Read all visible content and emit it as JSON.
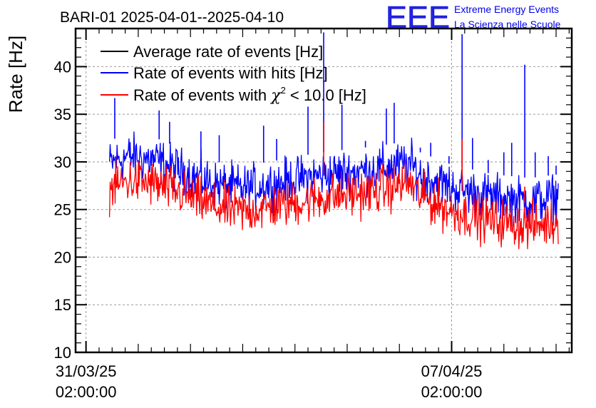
{
  "chart_data": {
    "type": "line",
    "title": "BARI-01 2025-04-01--2025-04-10",
    "ylabel": "Rate [Hz]",
    "xlabel": "",
    "ylim": [
      10,
      44
    ],
    "yticks": [
      10,
      15,
      20,
      25,
      30,
      35,
      40
    ],
    "x_unit": "days since 31/03/25 02:00:00",
    "xlim": [
      -0.2,
      9.3
    ],
    "xticks": [
      {
        "x": 0,
        "date": "31/03/25",
        "time": "02:00:00"
      },
      {
        "x": 7,
        "date": "07/04/25",
        "time": "02:00:00"
      }
    ],
    "grid": true,
    "legend_position": "top-left",
    "logo": {
      "mark": "EEE",
      "line1": "Extreme Energy Events",
      "line2": "La Scienza nelle Scuole"
    },
    "series": [
      {
        "name": "Average rate of events [Hz]",
        "legend_text": "Average rate of events [Hz]",
        "color": "#000000",
        "points": [
          [
            0.5,
            29.0
          ],
          [
            1.0,
            28.8
          ],
          [
            2.0,
            28.0
          ],
          [
            3.0,
            27.4
          ],
          [
            4.0,
            28.2
          ],
          [
            5.0,
            28.6
          ],
          [
            6.0,
            29.4
          ],
          [
            6.5,
            27.5
          ],
          [
            7.5,
            26.5
          ],
          [
            8.5,
            25.6
          ],
          [
            9.0,
            26.0
          ]
        ]
      },
      {
        "name": "Rate of events with hits [Hz]",
        "legend_text": "Rate of events with hits [Hz]",
        "color": "#0000ff",
        "x_start": 0.45,
        "x_end": 9.05,
        "baseline": [
          [
            0.45,
            29.8
          ],
          [
            0.8,
            30.6
          ],
          [
            1.3,
            30.2
          ],
          [
            2.0,
            28.6
          ],
          [
            2.5,
            27.6
          ],
          [
            3.0,
            27.2
          ],
          [
            3.5,
            27.6
          ],
          [
            4.5,
            28.6
          ],
          [
            5.5,
            29.2
          ],
          [
            6.2,
            29.8
          ],
          [
            6.4,
            28.6
          ],
          [
            7.0,
            27.3
          ],
          [
            7.8,
            26.3
          ],
          [
            8.5,
            25.9
          ],
          [
            9.05,
            26.3
          ]
        ],
        "spikes": [
          [
            0.55,
            36.7
          ],
          [
            1.4,
            35.4
          ],
          [
            1.6,
            34.2
          ],
          [
            2.2,
            33.2
          ],
          [
            2.55,
            32.8
          ],
          [
            3.4,
            33.8
          ],
          [
            3.65,
            32.4
          ],
          [
            4.25,
            35.8
          ],
          [
            4.55,
            43.6
          ],
          [
            4.9,
            36.0
          ],
          [
            5.35,
            32.2
          ],
          [
            5.75,
            35.6
          ],
          [
            5.9,
            36.2
          ],
          [
            6.4,
            31.5
          ],
          [
            6.6,
            32.0
          ],
          [
            6.95,
            30.6
          ],
          [
            7.2,
            43.4
          ],
          [
            7.4,
            32.5
          ],
          [
            7.7,
            30.2
          ],
          [
            8.0,
            31.0
          ],
          [
            8.15,
            32.0
          ],
          [
            8.4,
            40.2
          ],
          [
            8.6,
            31.0
          ],
          [
            8.85,
            30.6
          ],
          [
            9.0,
            29.6
          ]
        ]
      },
      {
        "name": "Rate of events with χ² < 10.0 [Hz]",
        "legend_prefix": "Rate of events with ",
        "legend_symbol": "χ",
        "legend_sup": "2",
        "legend_suffix": " < 10.0 [Hz]",
        "color": "#ff0000",
        "x_start": 0.45,
        "x_end": 9.05,
        "baseline": [
          [
            0.45,
            27.2
          ],
          [
            0.8,
            28.0
          ],
          [
            1.3,
            27.7
          ],
          [
            2.0,
            26.3
          ],
          [
            2.5,
            25.2
          ],
          [
            3.0,
            24.8
          ],
          [
            3.5,
            25.2
          ],
          [
            4.5,
            26.2
          ],
          [
            5.5,
            26.9
          ],
          [
            6.2,
            27.8
          ],
          [
            6.4,
            26.4
          ],
          [
            7.0,
            24.8
          ],
          [
            7.8,
            23.8
          ],
          [
            8.5,
            23.3
          ],
          [
            9.05,
            23.7
          ]
        ],
        "spikes": [
          [
            4.55,
            34.2
          ],
          [
            7.2,
            32.4
          ],
          [
            8.4,
            27.4
          ]
        ]
      }
    ]
  }
}
